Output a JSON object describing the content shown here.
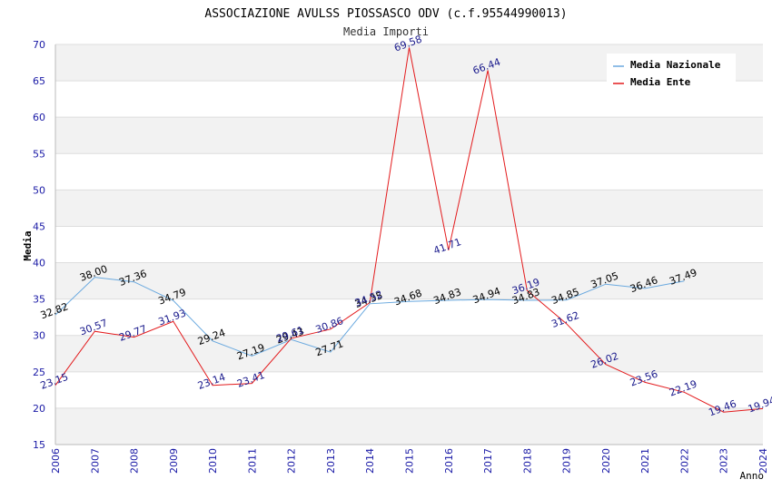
{
  "chart_data": {
    "type": "line",
    "title": "ASSOCIAZIONE AVULSS PIOSSASCO ODV (c.f.95544990013)",
    "subtitle": "Media Importi",
    "xlabel": "Anno",
    "ylabel": "Media",
    "x": [
      2006,
      2007,
      2008,
      2009,
      2010,
      2011,
      2012,
      2013,
      2014,
      2015,
      2016,
      2017,
      2018,
      2019,
      2020,
      2021,
      2022,
      2023,
      2024
    ],
    "ylim": [
      15,
      70
    ],
    "yticks": [
      15,
      20,
      25,
      30,
      35,
      40,
      45,
      50,
      55,
      60,
      65,
      70
    ],
    "legend_position": "top-right",
    "series": [
      {
        "name": "Media Nazionale",
        "color": "#6aa9df",
        "label_color": "#000000",
        "values": [
          32.82,
          38.0,
          37.36,
          34.79,
          29.24,
          27.19,
          29.43,
          27.71,
          34.35,
          34.68,
          34.83,
          34.94,
          34.83,
          34.85,
          37.05,
          36.46,
          37.49,
          null,
          null
        ],
        "labels": [
          "32.82",
          "38.00",
          "37.36",
          "34.79",
          "29.24",
          "27.19",
          "29.43",
          "27.71",
          "34.35",
          "34.68",
          "34.83",
          "34.94",
          "34.83",
          "34.85",
          "37.05",
          "36.46",
          "37.49",
          null,
          null
        ]
      },
      {
        "name": "Media Ente",
        "color": "#e31a1c",
        "label_color": "#1a1a8c",
        "values": [
          23.15,
          30.57,
          29.77,
          31.93,
          23.14,
          23.41,
          29.61,
          30.86,
          34.52,
          69.58,
          41.71,
          66.44,
          36.19,
          31.62,
          26.02,
          23.56,
          22.19,
          19.46,
          19.94
        ],
        "labels": [
          "23.15",
          "30.57",
          "29.77",
          "31.93",
          "23.14",
          "23.41",
          "29.61",
          "30.86",
          "34.52",
          "69.58",
          "41.71",
          "66.44",
          "36.19",
          "31.62",
          "26.02",
          "23.56",
          "22.19",
          "19.46",
          "19.94"
        ]
      }
    ],
    "colors": {
      "band": "#f2f2f2",
      "grid": "#dddddd",
      "axis": "#bbbbbb",
      "tick_text": "#1a1aa6",
      "title_text": "#000000",
      "subtitle_text": "#333333"
    }
  }
}
